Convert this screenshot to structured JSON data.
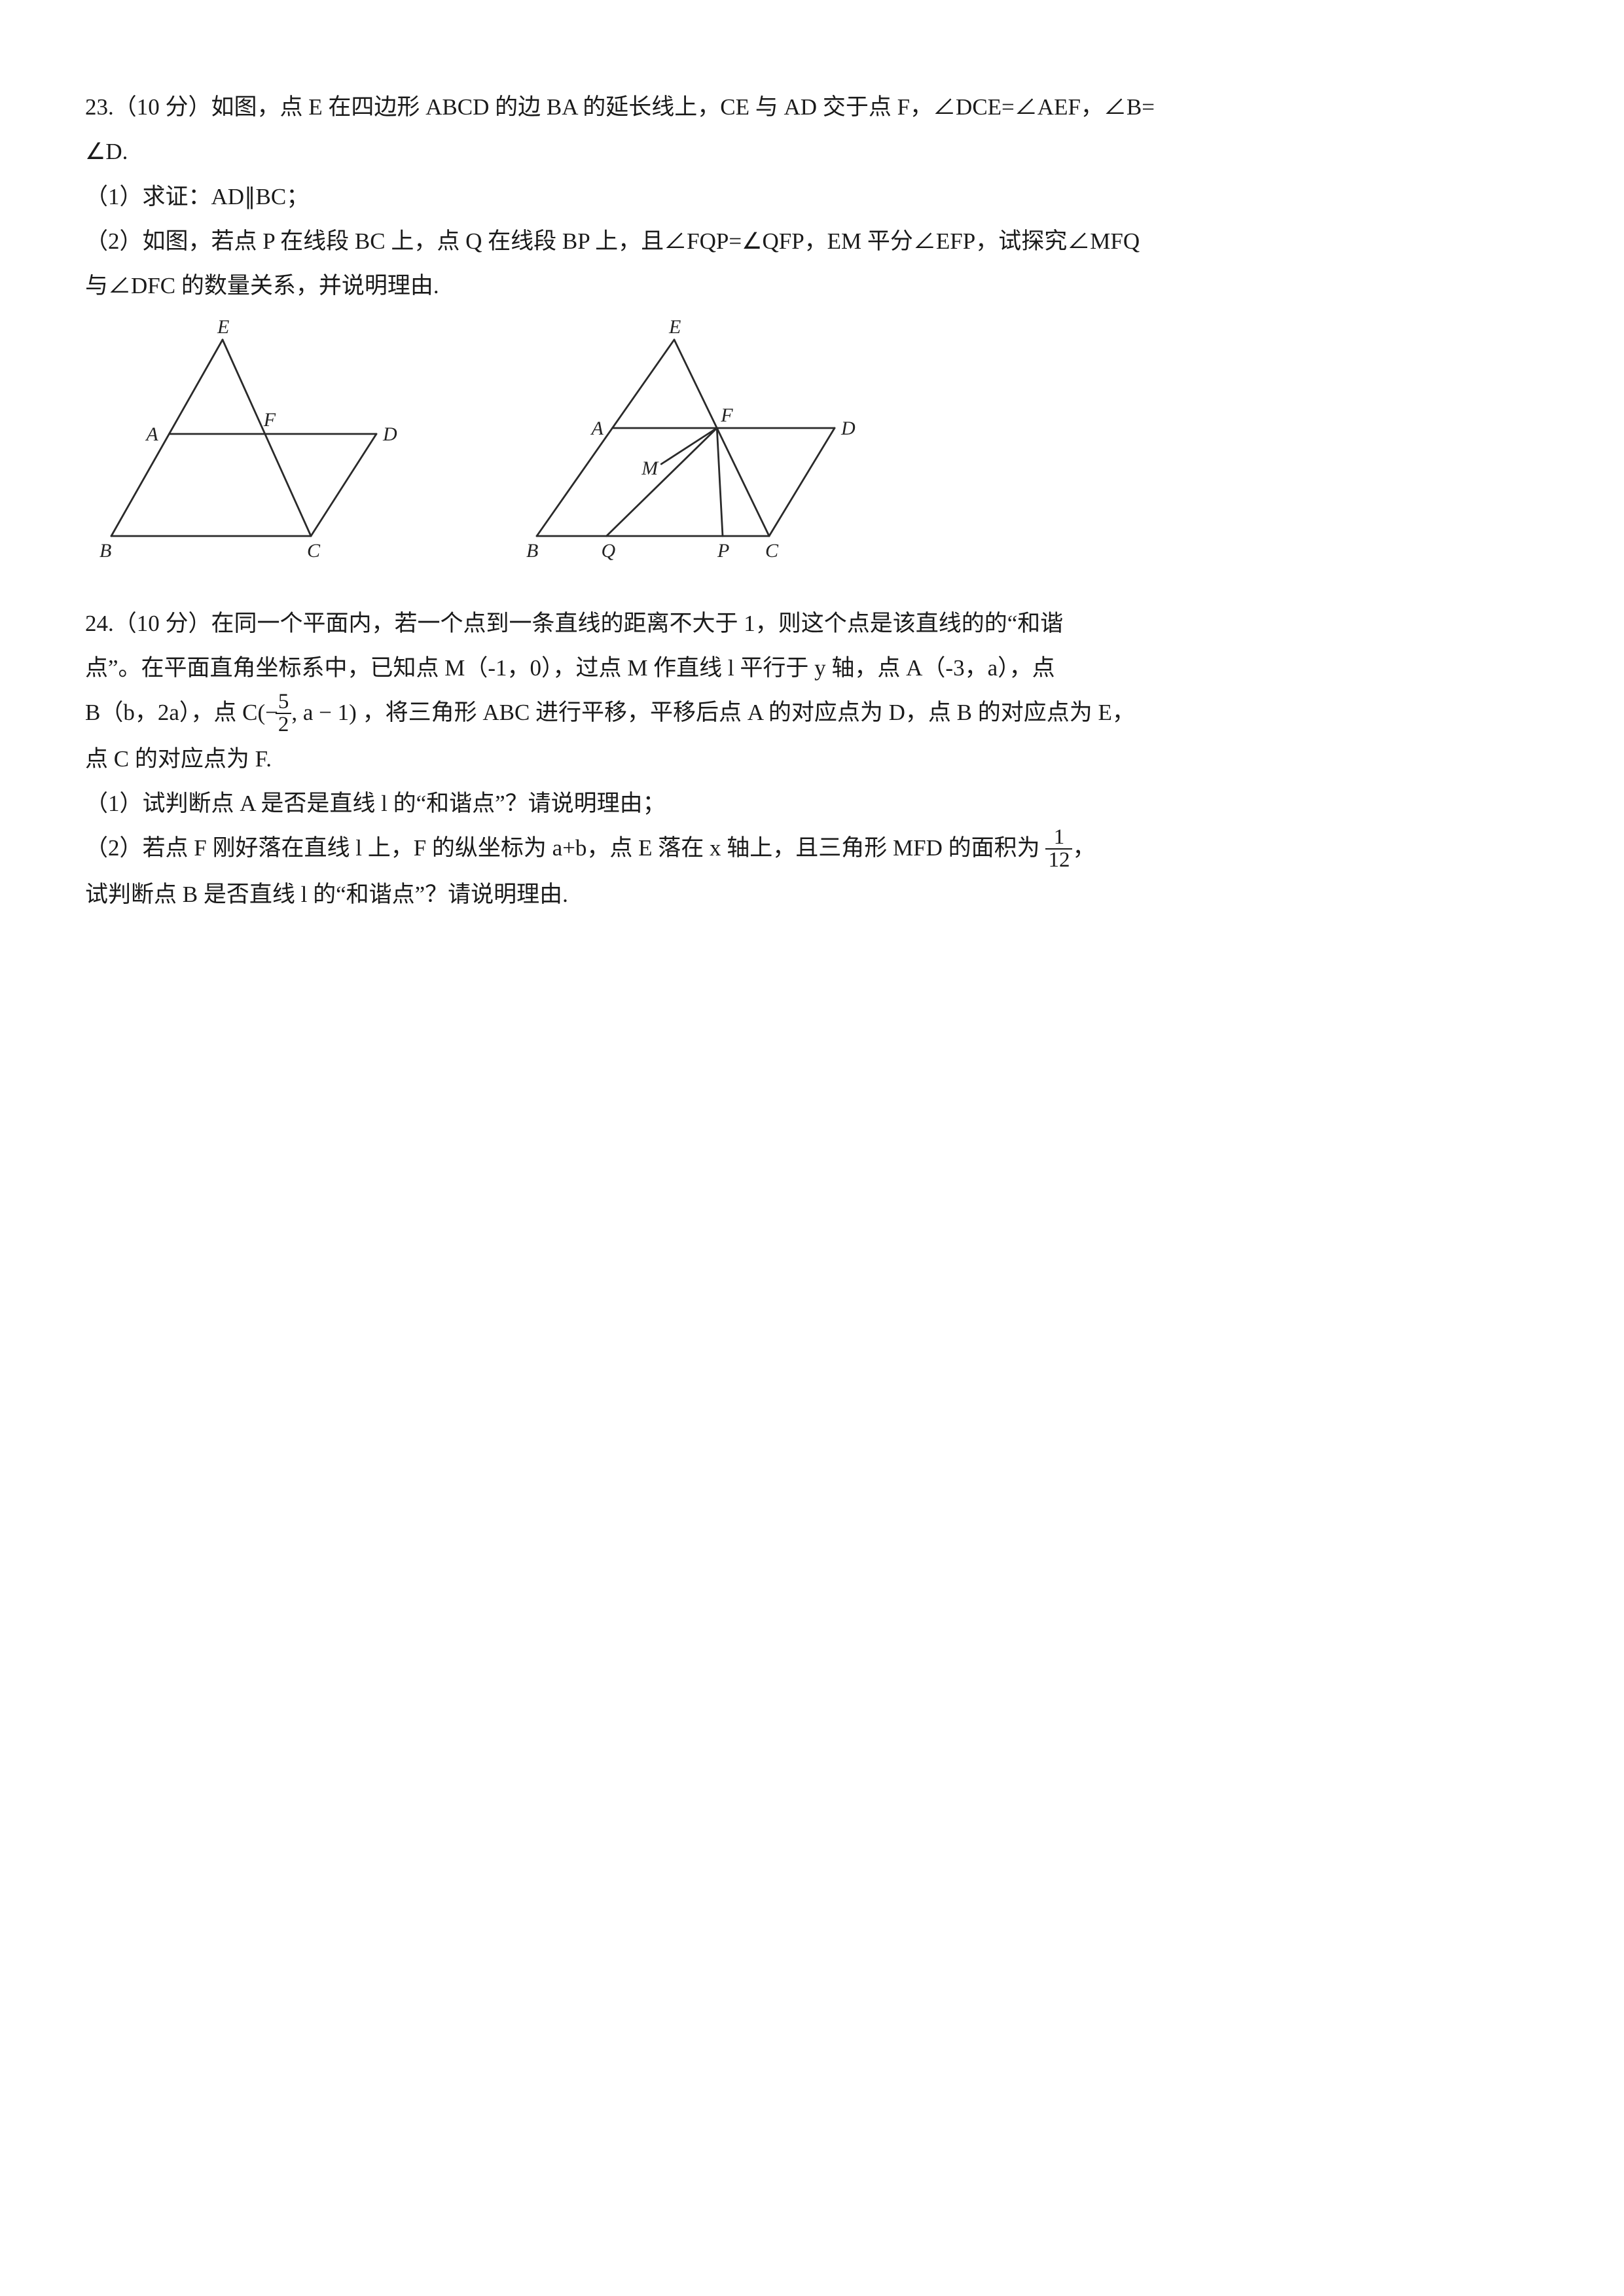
{
  "q23": {
    "line1": "23.（10 分）如图，点 E 在四边形 ABCD 的边 BA 的延长线上，CE 与 AD 交于点 F，∠DCE=∠AEF，∠B=",
    "line2": "∠D.",
    "part1": "（1）求证：AD∥BC；",
    "part2": "（2）如图，若点 P 在线段 BC 上，点 Q 在线段 BP 上，且∠FQP=∠QFP，EM 平分∠EFP，试探究∠MFQ",
    "part2b": "与∠DFC 的数量关系，并说明理由."
  },
  "q24": {
    "line1": "24.（10 分）在同一个平面内，若一个点到一条直线的距离不大于 1，则这个点是该直线的的“和谐",
    "line2_a": "点”。在平面直角坐标系中，已知点 M（-1，0），过点 M 作直线 l 平行于 y 轴，点 A（-3，a），点",
    "line3_a": "B（b，2a），点",
    "c_pre": "C(",
    "c_neg": "−",
    "c_num": "5",
    "c_den": "2",
    "c_post": ", a − 1)",
    "line3_b": "，将三角形 ABC 进行平移，平移后点 A 的对应点为 D，点 B 的对应点为 E，",
    "line4": "点 C 的对应点为 F.",
    "part1": "（1）试判断点 A 是否是直线 l 的“和谐点”？请说明理由；",
    "part2a": "（2）若点 F 刚好落在直线 l 上，F 的纵坐标为 a+b，点 E 落在 x 轴上，且三角形 MFD 的面积为",
    "frac_num": "1",
    "frac_den": "12",
    "part2a_end": "，",
    "part2b": "试判断点 B 是否直线 l 的“和谐点”？请说明理由."
  },
  "fig1": {
    "labels": {
      "E": "E",
      "A": "A",
      "F": "F",
      "D": "D",
      "B": "B",
      "C": "C"
    },
    "style": {
      "stroke": "#2a2a2a",
      "stroke_width": 2.8
    }
  },
  "fig2": {
    "labels": {
      "E": "E",
      "A": "A",
      "F": "F",
      "D": "D",
      "M": "M",
      "B": "B",
      "Q": "Q",
      "P": "P",
      "C": "C"
    },
    "style": {
      "stroke": "#2a2a2a",
      "stroke_width": 2.8
    }
  }
}
